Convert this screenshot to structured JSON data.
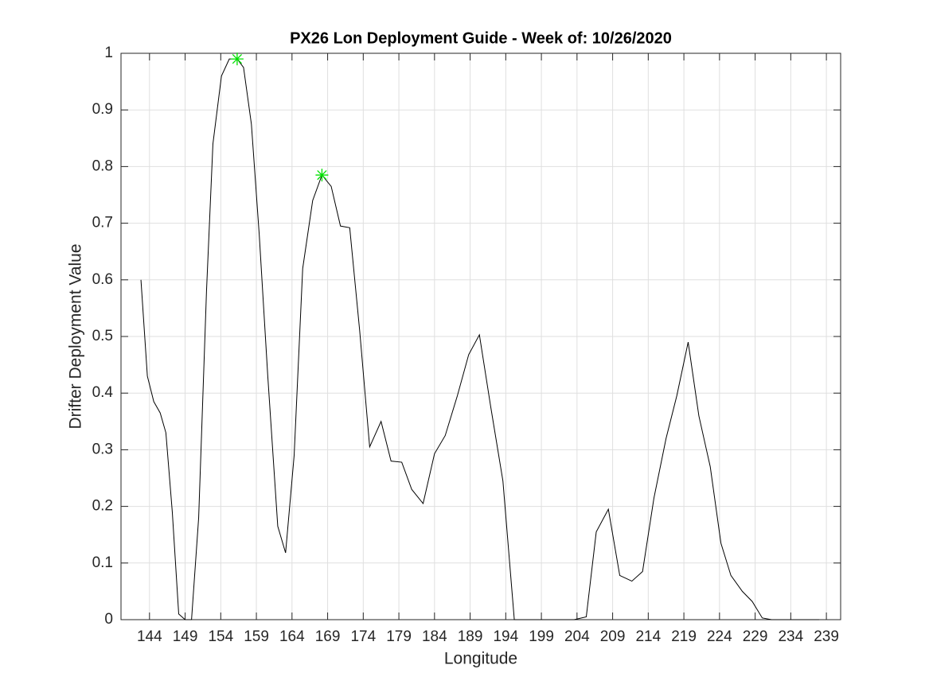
{
  "chart_data": {
    "type": "line",
    "title": "PX26 Lon Deployment Guide - Week of: 10/26/2020",
    "x_label": "Longitude",
    "y_label": "Drifter Deployment Value",
    "xlim": [
      140,
      241
    ],
    "ylim": [
      0,
      1
    ],
    "xticks": [
      144,
      149,
      154,
      159,
      164,
      169,
      174,
      179,
      184,
      189,
      194,
      199,
      204,
      209,
      214,
      219,
      224,
      229,
      234,
      239
    ],
    "yticks": [
      0,
      0.1,
      0.2,
      0.3,
      0.4,
      0.5,
      0.6,
      0.7,
      0.8,
      0.9,
      1
    ],
    "grid": true,
    "series": [
      {
        "color": "#000000",
        "style": "line",
        "x": [
          142.8,
          143.7,
          144.6,
          145.5,
          146.3,
          147.2,
          148.1,
          149.0,
          149.9,
          150.9,
          152.0,
          152.9,
          154.1,
          155.2,
          156.3,
          157.2,
          158.3,
          159.4,
          160.6,
          162.0,
          163.1,
          164.3,
          165.5,
          166.9,
          168.2,
          169.5,
          170.8,
          172.1,
          173.5,
          174.9,
          176.5,
          177.9,
          179.4,
          180.8,
          182.4,
          184.0,
          185.5,
          187.2,
          188.8,
          190.3,
          191.9,
          193.6,
          195.2,
          196.9,
          198.6,
          200.3,
          201.9,
          203.6,
          205.3,
          206.7,
          208.4,
          210.0,
          211.7,
          213.2,
          214.8,
          216.5,
          218.0,
          219.6,
          221.1,
          222.7,
          224.2,
          225.6,
          227.2,
          228.6,
          230.0,
          231.3,
          232.8,
          234.1,
          235.4,
          236.7,
          238.0
        ],
        "values": [
          0.6,
          0.43,
          0.385,
          0.365,
          0.33,
          0.19,
          0.01,
          0.0,
          0.0,
          0.18,
          0.58,
          0.84,
          0.96,
          0.99,
          0.99,
          0.975,
          0.875,
          0.68,
          0.43,
          0.165,
          0.118,
          0.29,
          0.62,
          0.74,
          0.785,
          0.765,
          0.695,
          0.692,
          0.51,
          0.305,
          0.35,
          0.28,
          0.278,
          0.23,
          0.205,
          0.293,
          0.325,
          0.395,
          0.468,
          0.503,
          0.375,
          0.245,
          0.0,
          0.0,
          0.0,
          0.0,
          0.0,
          0.0,
          0.005,
          0.155,
          0.195,
          0.078,
          0.068,
          0.085,
          0.215,
          0.32,
          0.395,
          0.49,
          0.36,
          0.27,
          0.135,
          0.078,
          0.05,
          0.032,
          0.003,
          0.0,
          0.0,
          0.0,
          0.0,
          0.0,
          0.0
        ]
      },
      {
        "color": "#00e000",
        "style": "asterisk",
        "x": [
          156.3,
          168.2
        ],
        "values": [
          0.99,
          0.785
        ]
      }
    ]
  }
}
